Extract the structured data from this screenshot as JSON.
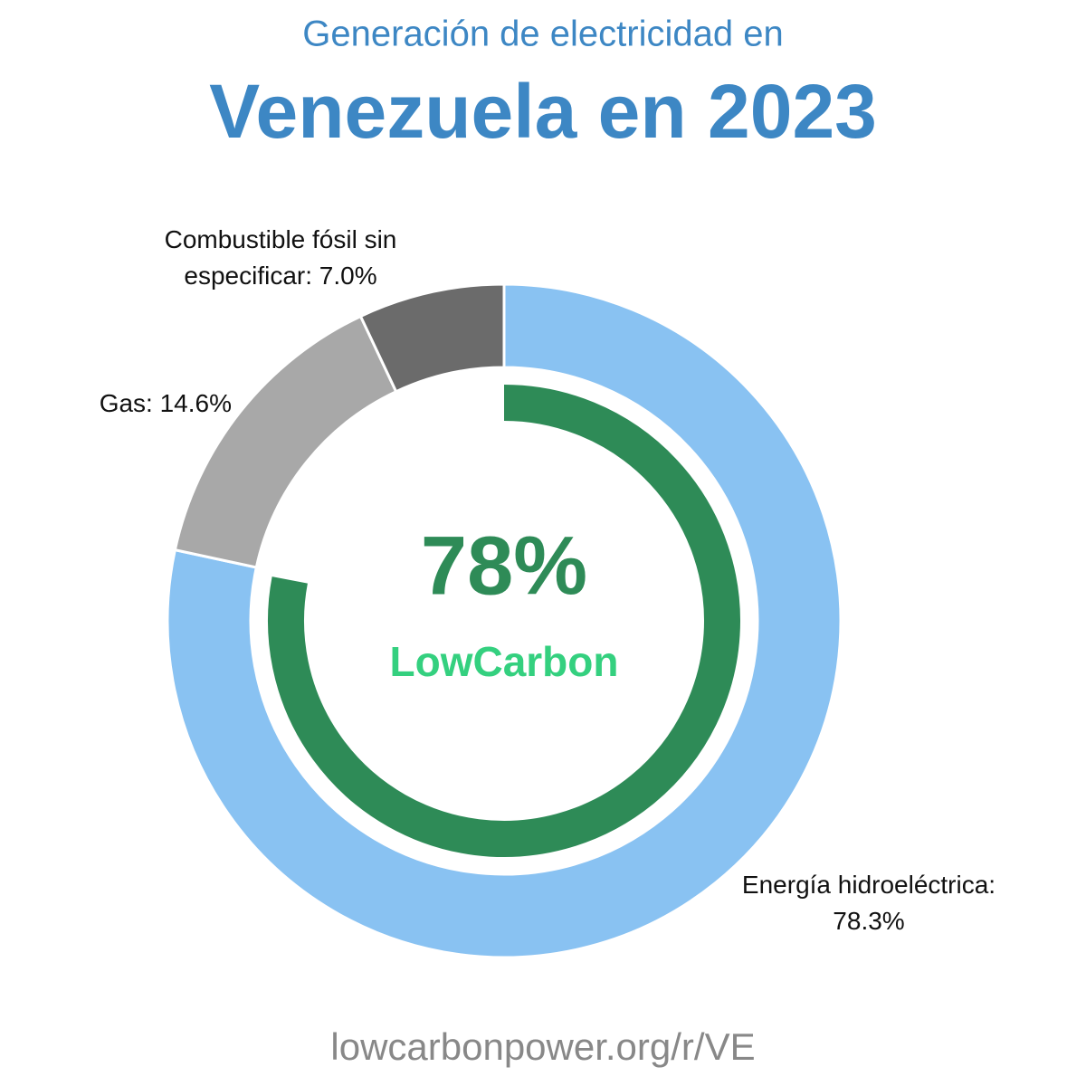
{
  "chart_data": {
    "type": "donut",
    "subtitle": "Generación de electricidad en",
    "title": "Venezuela en 2023",
    "values": [
      78.3,
      14.6,
      7.0
    ],
    "value_labels": [
      "Energía hidroeléctrica: 78.3%",
      "Gas: 14.6%",
      "Combustible fósil sin especificar: 7.0%"
    ],
    "colors": [
      "#89c2f2",
      "#a8a8a8",
      "#6b6b6b"
    ],
    "low_carbon": {
      "value": 78,
      "label": "78%",
      "name": "LowCarbon",
      "color": "#2e8b57",
      "name_color": "#34d07f"
    },
    "footer": "lowcarbonpower.org/r/VE"
  }
}
